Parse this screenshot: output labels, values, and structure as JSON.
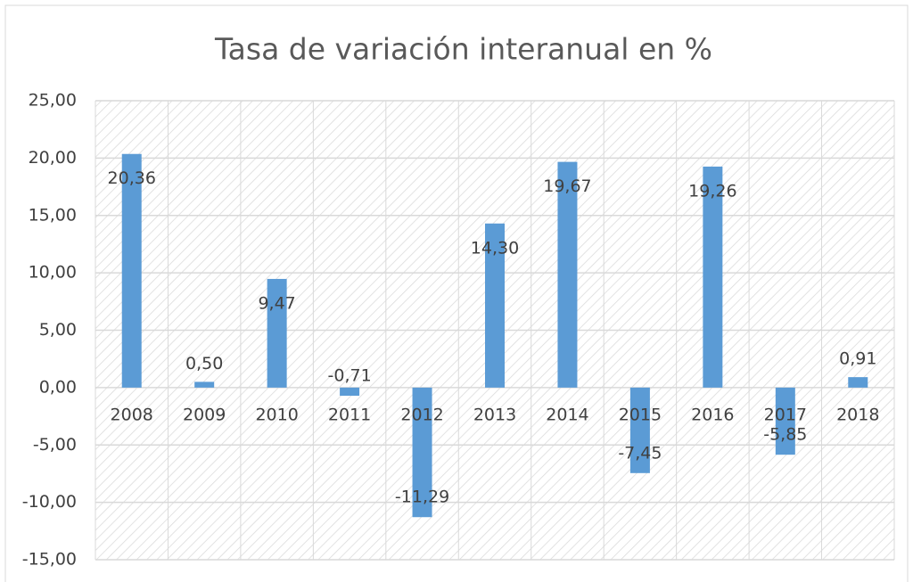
{
  "chart_data": {
    "type": "bar",
    "title": "Tasa de variación interanual en %",
    "categories": [
      "2008",
      "2009",
      "2010",
      "2011",
      "2012",
      "2013",
      "2014",
      "2015",
      "2016",
      "2017",
      "2018"
    ],
    "values": [
      20.36,
      0.5,
      9.47,
      -0.71,
      -11.29,
      14.3,
      19.67,
      -7.45,
      19.26,
      -5.85,
      0.91
    ],
    "value_labels": [
      "20,36",
      "0,50",
      "9,47",
      "-0,71",
      "-11,29",
      "14,30",
      "19,67",
      "-7,45",
      "19,26",
      "-5,85",
      "0,91"
    ],
    "color": "#5b9bd5",
    "ylim": [
      -15,
      25
    ],
    "yticks": [
      {
        "value": -15,
        "label": "-15,00"
      },
      {
        "value": -10,
        "label": "-10,00"
      },
      {
        "value": -5,
        "label": "-5,00"
      },
      {
        "value": 0,
        "label": "0,00"
      },
      {
        "value": 5,
        "label": "5,00"
      },
      {
        "value": 10,
        "label": "10,00"
      },
      {
        "value": 15,
        "label": "15,00"
      },
      {
        "value": 20,
        "label": "20,00"
      },
      {
        "value": 25,
        "label": "25,00"
      }
    ],
    "grid": true
  }
}
